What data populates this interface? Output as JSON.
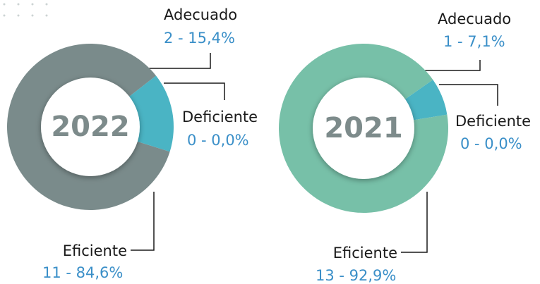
{
  "chart_data": [
    {
      "type": "pie",
      "donut": true,
      "center_text": "2022",
      "categories": [
        "Adecuado",
        "Deficiente",
        "Eficiente"
      ],
      "values": [
        2,
        0,
        11
      ],
      "value_labels": [
        "2 - 15,4%",
        "0 - 0,0%",
        "11 - 84,6%"
      ],
      "colors": [
        "#4ab4c4",
        null,
        "#7a8b8b"
      ]
    },
    {
      "type": "pie",
      "donut": true,
      "center_text": "2021",
      "categories": [
        "Adecuado",
        "Deficiente",
        "Eficiente"
      ],
      "values": [
        1,
        0,
        13
      ],
      "value_labels": [
        "1 - 7,1%",
        "0 - 0,0%",
        "13 - 92,9%"
      ],
      "colors": [
        "#4ab4c4",
        null,
        "#77c0a8"
      ]
    }
  ]
}
